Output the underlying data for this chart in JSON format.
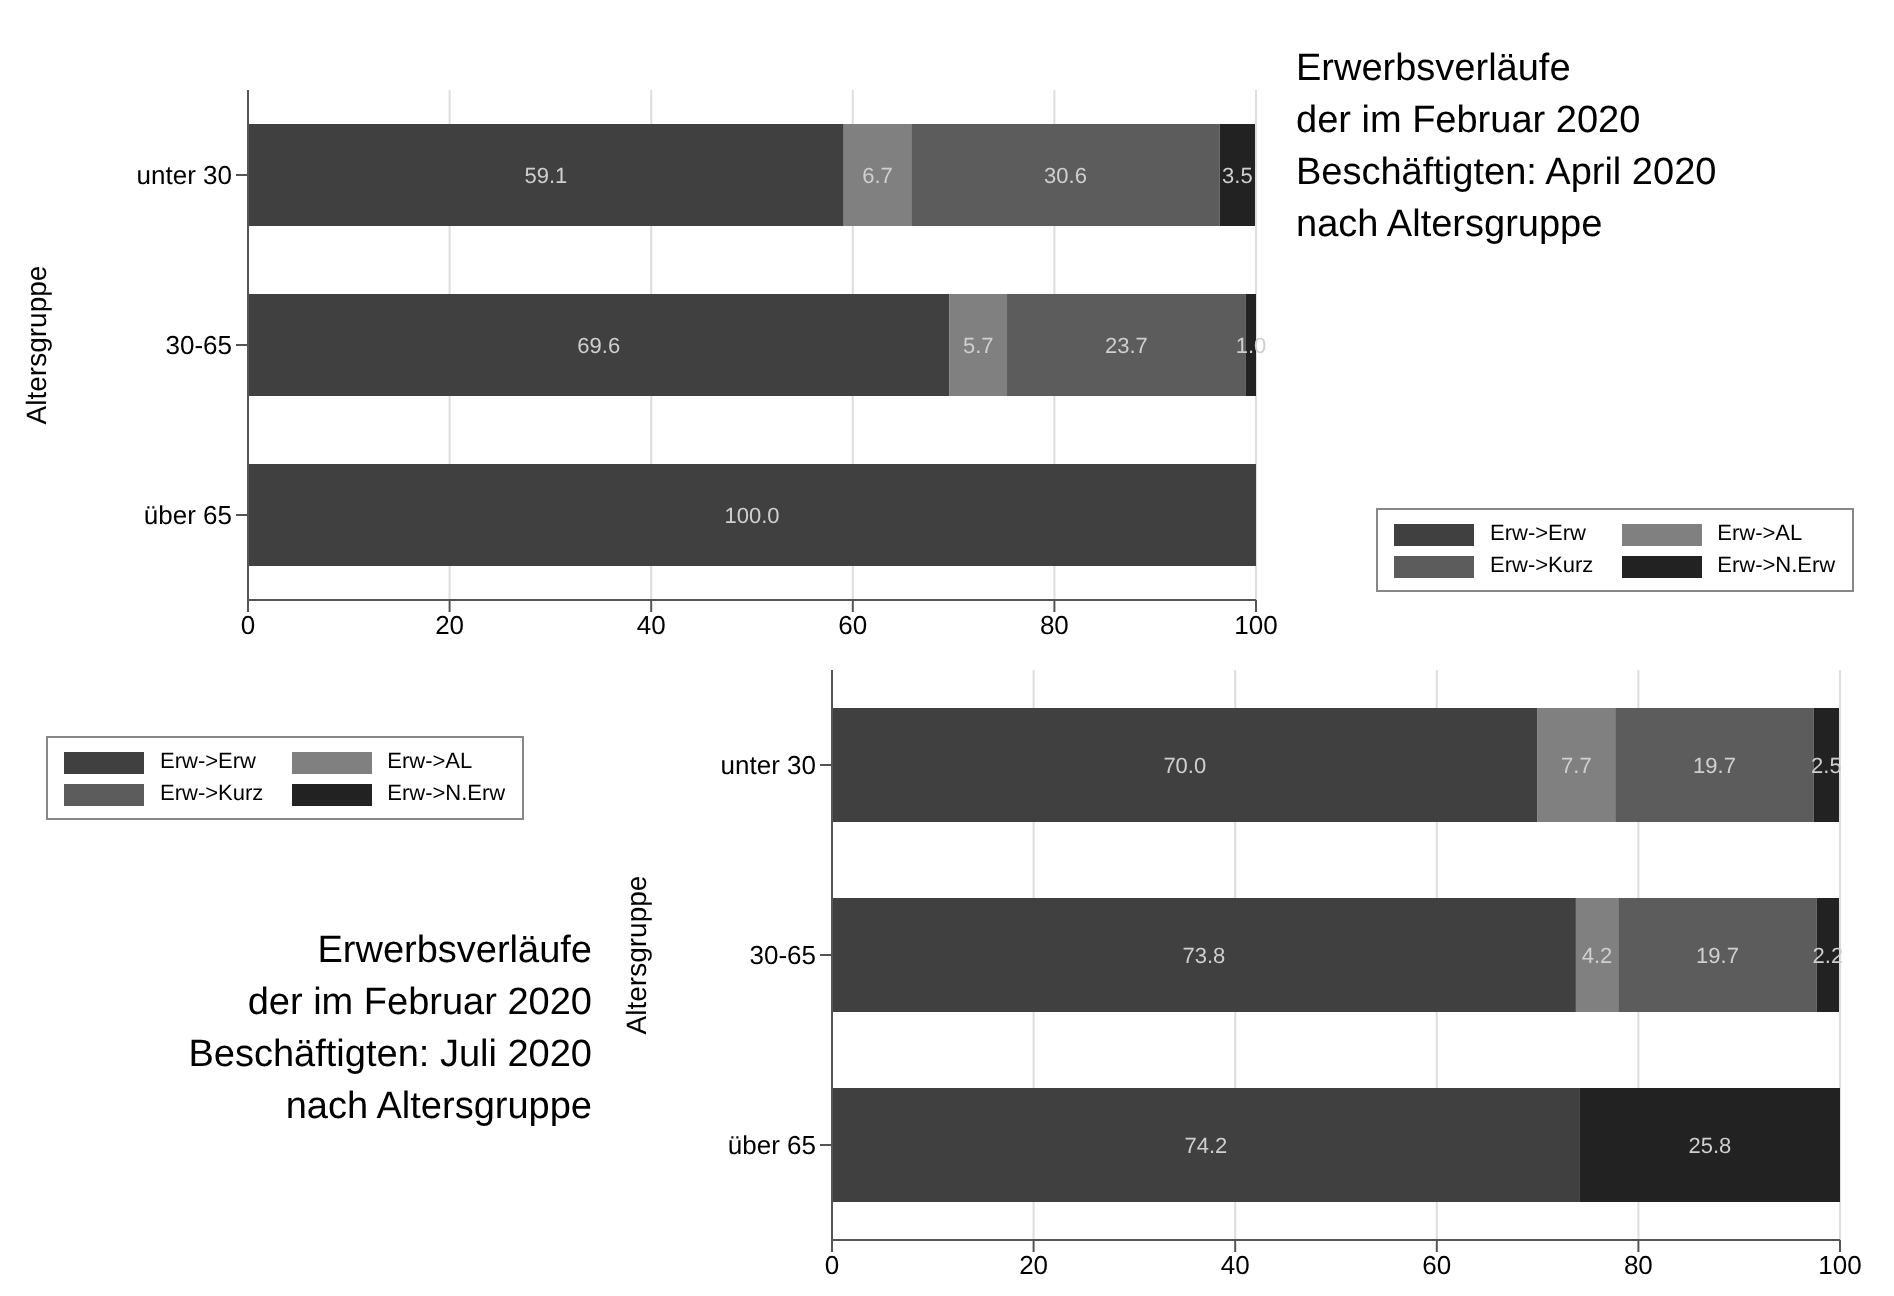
{
  "chart_data": [
    {
      "type": "bar",
      "orientation": "horizontal",
      "stacked": true,
      "title": "Erwerbsverläufe\nder im Februar 2020\nBeschäftigten: April 2020\nnach Altersgruppe",
      "ylabel": "Altersgruppe",
      "categories": [
        "unter 30",
        "30-65",
        "über 65"
      ],
      "xlim": [
        0,
        100
      ],
      "xticks": [
        0,
        20,
        40,
        60,
        80,
        100
      ],
      "grid": "x",
      "legend": "right",
      "series": [
        {
          "name": "Erw->Erw",
          "color": "#404040",
          "values": [
            59.1,
            69.6,
            100.0
          ],
          "value_labels": [
            "59.1",
            "69.6",
            "100.0"
          ]
        },
        {
          "name": "Erw->AL",
          "color": "#808080",
          "values": [
            6.7,
            5.7,
            null
          ],
          "value_labels": [
            "6.7",
            "5.7",
            null
          ]
        },
        {
          "name": "Erw->Kurz",
          "color": "#5c5c5c",
          "values": [
            30.6,
            23.7,
            null
          ],
          "value_labels": [
            "30.6",
            "23.7",
            null
          ]
        },
        {
          "name": "Erw->N.Erw",
          "color": "#222222",
          "values": [
            3.5,
            1.0,
            null
          ],
          "value_labels": [
            "3.5",
            "1.0",
            null
          ]
        }
      ]
    },
    {
      "type": "bar",
      "orientation": "horizontal",
      "stacked": true,
      "title": "Erwerbsverläufe\nder im Februar 2020\nBeschäftigten: Juli 2020\nnach Altersgruppe",
      "ylabel": "Altersgruppe",
      "categories": [
        "unter 30",
        "30-65",
        "über 65"
      ],
      "xlim": [
        0,
        100
      ],
      "xticks": [
        0,
        20,
        40,
        60,
        80,
        100
      ],
      "grid": "x",
      "legend": "left",
      "series": [
        {
          "name": "Erw->Erw",
          "color": "#404040",
          "values": [
            70.0,
            73.8,
            74.2
          ],
          "value_labels": [
            "70.0",
            "73.8",
            "74.2"
          ]
        },
        {
          "name": "Erw->AL",
          "color": "#808080",
          "values": [
            7.7,
            4.2,
            null
          ],
          "value_labels": [
            "7.7",
            "4.2",
            null
          ]
        },
        {
          "name": "Erw->Kurz",
          "color": "#5c5c5c",
          "values": [
            19.7,
            19.7,
            null
          ],
          "value_labels": [
            "19.7",
            "19.7",
            null
          ]
        },
        {
          "name": "Erw->N.Erw",
          "color": "#222222",
          "values": [
            2.5,
            2.2,
            25.8
          ],
          "value_labels": [
            "2.5",
            "2.2",
            "25.8"
          ]
        }
      ]
    }
  ]
}
